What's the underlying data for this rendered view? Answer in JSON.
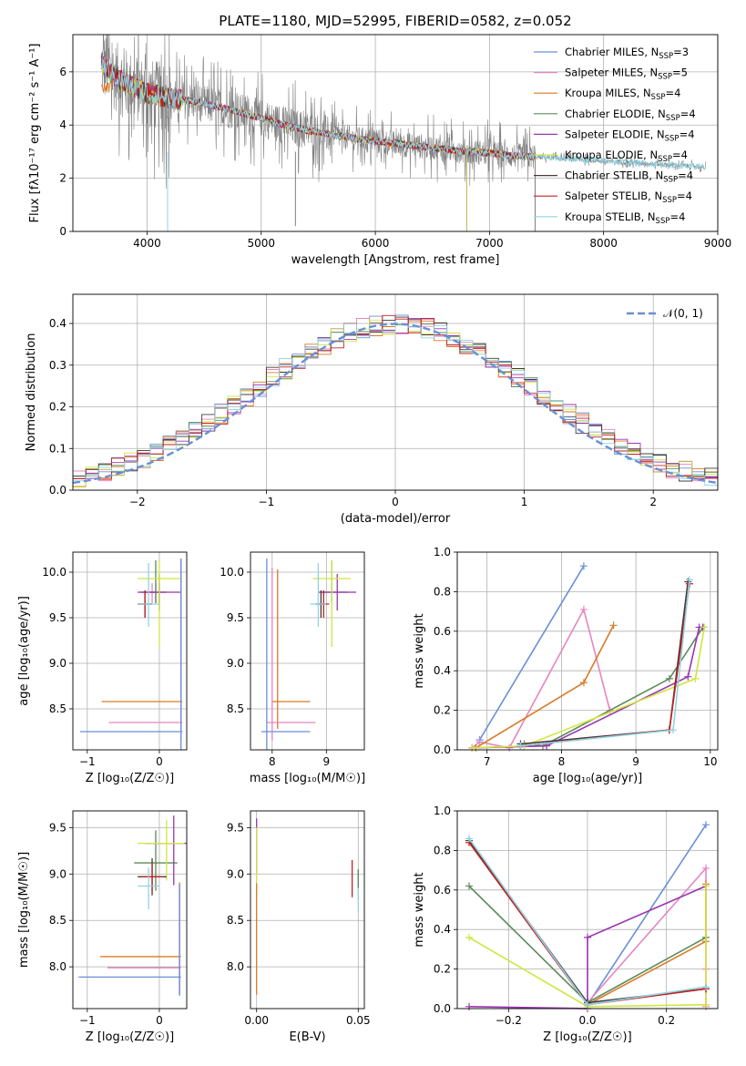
{
  "figure_title": "PLATE=1180, MJD=52995, FIBERID=0582, z=0.052",
  "fits": [
    {
      "name": "Chabrier MILES",
      "nssp": "3",
      "color": "#6a8fd6"
    },
    {
      "name": "Salpeter MILES",
      "nssp": "5",
      "color": "#e586c0"
    },
    {
      "name": "Kroupa MILES",
      "nssp": "4",
      "color": "#d97a25"
    },
    {
      "name": "Chabrier ELODIE",
      "nssp": "4",
      "color": "#5b8a5b"
    },
    {
      "name": "Salpeter ELODIE",
      "nssp": "4",
      "color": "#9a35b0"
    },
    {
      "name": "Kroupa ELODIE",
      "nssp": "4",
      "color": "#cfe63e"
    },
    {
      "name": "Chabrier STELIB",
      "nssp": "4",
      "color": "#4a3838"
    },
    {
      "name": "Salpeter STELIB",
      "nssp": "4",
      "color": "#c62020"
    },
    {
      "name": "Kroupa STELIB",
      "nssp": "4",
      "color": "#8fd3e3"
    }
  ],
  "chart_data": [
    {
      "id": "spectrum",
      "type": "line",
      "xlabel": "wavelength [Angstrom, rest frame]",
      "ylabel": "Flux [fλ10⁻¹⁷ erg cm⁻² s⁻¹ A⁻¹]",
      "xlim": [
        3350,
        9000
      ],
      "ylim": [
        0,
        7.4
      ],
      "xticks": [
        4000,
        5000,
        6000,
        7000,
        8000,
        9000
      ],
      "yticks": [
        0,
        2,
        4,
        6
      ],
      "data_color": "#808080",
      "data_approx": {
        "x": [
          3600,
          3700,
          3800,
          3900,
          4000,
          4200,
          4400,
          4600,
          4800,
          5000,
          5200,
          5400,
          5600,
          5800,
          6000,
          6200,
          6400,
          6600,
          6800,
          7000,
          7200,
          7400,
          7600,
          7800,
          8000,
          8200,
          8400,
          8600,
          8800,
          8900
        ],
        "y": [
          6.3,
          5.9,
          5.6,
          5.4,
          5.2,
          5.0,
          4.9,
          4.7,
          4.5,
          4.25,
          4.0,
          3.8,
          3.65,
          3.5,
          3.4,
          3.3,
          3.2,
          3.1,
          3.0,
          2.95,
          2.85,
          2.8,
          2.75,
          2.7,
          2.65,
          2.6,
          2.55,
          2.5,
          2.45,
          2.4
        ]
      },
      "model_x_range": [
        3600,
        7400
      ],
      "model_orange_x_range": [
        3600,
        7400
      ],
      "model_cyan_x_range": [
        3600,
        9000
      ]
    },
    {
      "id": "residual_hist",
      "type": "line",
      "xlabel": "(data-model)/error",
      "ylabel": "Normed distribution",
      "xlim": [
        -2.5,
        2.5
      ],
      "ylim": [
        0,
        0.47
      ],
      "xticks": [
        -2,
        -1,
        0,
        1,
        2
      ],
      "yticks": [
        0.0,
        0.1,
        0.2,
        0.3,
        0.4
      ],
      "legend_label": "𝒩(0, 1)",
      "curve": "gaussian mean 0 sigma 1",
      "bin_width": 0.1
    },
    {
      "id": "age_vs_Z",
      "type": "scatter",
      "xlabel": "Z [log₁₀(Z/Z☉)]",
      "ylabel": "age  [log₁₀(age/yr)]",
      "xlim": [
        -1.2,
        0.38
      ],
      "ylim": [
        8.05,
        10.22
      ],
      "xticks": [
        -1,
        0
      ],
      "yticks": [
        8.5,
        9.0,
        9.5,
        10.0
      ],
      "points": [
        {
          "fit": 0,
          "x": -0.05,
          "y": 9.78,
          "xerr": [
            0.2,
            0.12
          ],
          "yerr": [
            0.12,
            0.1
          ]
        },
        {
          "fit": 1,
          "x": -0.1,
          "y": 9.78,
          "xerr": [
            0.2,
            0.12
          ],
          "yerr": [
            0.12,
            0.1
          ]
        },
        {
          "fit": 2,
          "x": 0.0,
          "y": 9.78,
          "xerr": [
            0.2,
            0.1
          ],
          "yerr": [
            0.12,
            0.1
          ]
        },
        {
          "fit": 3,
          "x": -0.05,
          "y": 9.78,
          "xerr": [
            0.2,
            0.15
          ],
          "yerr": [
            0.12,
            0.35
          ]
        },
        {
          "fit": 4,
          "x": 0.0,
          "y": 9.78,
          "xerr": [
            0.3,
            0.3
          ],
          "yerr": [
            0.2,
            0.2
          ]
        },
        {
          "fit": 5,
          "x": 0.0,
          "y": 9.93,
          "xerr": [
            0.3,
            0.3
          ],
          "yerr": [
            0.75,
            0.2
          ]
        },
        {
          "fit": 6,
          "x": -0.2,
          "y": 9.65,
          "xerr": [
            0.1,
            0.1
          ],
          "yerr": [
            0.15,
            0.15
          ]
        },
        {
          "fit": 7,
          "x": -0.2,
          "y": 9.65,
          "xerr": [
            0.1,
            0.1
          ],
          "yerr": [
            0.15,
            0.15
          ]
        },
        {
          "fit": 8,
          "x": -0.15,
          "y": 9.65,
          "xerr": [
            0.15,
            0.15
          ],
          "yerr": [
            0.25,
            0.45
          ]
        },
        {
          "fit": 2,
          "x": 0.3,
          "y": 8.58,
          "xerr": [
            1.1,
            0.02
          ],
          "yerr": [
            0.3,
            1.55
          ]
        },
        {
          "fit": 1,
          "x": 0.3,
          "y": 8.35,
          "xerr": [
            1.0,
            0.02
          ],
          "yerr": [
            0.2,
            1.8
          ]
        },
        {
          "fit": 0,
          "x": 0.3,
          "y": 8.25,
          "xerr": [
            1.4,
            0.02
          ],
          "yerr": [
            0.2,
            1.9
          ]
        }
      ]
    },
    {
      "id": "age_vs_mass",
      "type": "scatter",
      "xlabel": "mass [log₁₀(M/M☉)]",
      "ylabel": "",
      "xlim": [
        7.6,
        9.7
      ],
      "ylim": [
        8.05,
        10.22
      ],
      "xticks": [
        8,
        9
      ],
      "yticks": [
        8.5,
        9.0,
        9.5,
        10.0
      ],
      "points": [
        {
          "fit": 0,
          "x": 9.1,
          "y": 9.78,
          "xerr": [
            0.2,
            0.3
          ],
          "yerr": [
            0.12,
            0.1
          ]
        },
        {
          "fit": 3,
          "x": 9.1,
          "y": 9.78,
          "xerr": [
            0.2,
            0.3
          ],
          "yerr": [
            0.12,
            0.35
          ]
        },
        {
          "fit": 4,
          "x": 9.2,
          "y": 9.78,
          "xerr": [
            0.35,
            0.35
          ],
          "yerr": [
            0.2,
            0.2
          ]
        },
        {
          "fit": 5,
          "x": 9.1,
          "y": 9.93,
          "xerr": [
            0.35,
            0.35
          ],
          "yerr": [
            0.75,
            0.2
          ]
        },
        {
          "fit": 6,
          "x": 8.9,
          "y": 9.65,
          "xerr": [
            0.1,
            0.1
          ],
          "yerr": [
            0.15,
            0.15
          ]
        },
        {
          "fit": 7,
          "x": 8.95,
          "y": 9.65,
          "xerr": [
            0.1,
            0.1
          ],
          "yerr": [
            0.15,
            0.15
          ]
        },
        {
          "fit": 8,
          "x": 8.85,
          "y": 9.65,
          "xerr": [
            0.15,
            0.15
          ],
          "yerr": [
            0.25,
            0.45
          ]
        },
        {
          "fit": 2,
          "x": 8.1,
          "y": 8.58,
          "xerr": [
            0.1,
            0.6
          ],
          "yerr": [
            0.3,
            1.45
          ]
        },
        {
          "fit": 1,
          "x": 8.0,
          "y": 8.35,
          "xerr": [
            0.1,
            0.8
          ],
          "yerr": [
            0.2,
            1.7
          ]
        },
        {
          "fit": 0,
          "x": 7.9,
          "y": 8.25,
          "xerr": [
            0.1,
            0.8
          ],
          "yerr": [
            0.2,
            1.9
          ]
        }
      ]
    },
    {
      "id": "mass_weight_vs_age",
      "type": "line",
      "xlabel": "age  [log₁₀(age/yr)]",
      "ylabel": "mass weight",
      "xlim": [
        6.6,
        10.1
      ],
      "ylim": [
        0,
        1.0
      ],
      "xticks": [
        7,
        8,
        9,
        10
      ],
      "yticks": [
        0.0,
        0.2,
        0.4,
        0.6,
        0.8,
        1.0
      ],
      "series": [
        {
          "fit": 0,
          "x": [
            6.9,
            8.3
          ],
          "y": [
            0.05,
            0.93
          ]
        },
        {
          "fit": 1,
          "x": 6.8,
          "x2": [
            6.8,
            6.9,
            7.3,
            8.3,
            8.65
          ],
          "y": [
            0.01,
            0.04,
            0.01,
            0.71,
            0.2
          ]
        },
        {
          "fit": 2,
          "x2": [
            6.85,
            8.3,
            8.7
          ],
          "y": [
            0.01,
            0.34,
            0.63
          ]
        },
        {
          "fit": 3,
          "x2": [
            7.5,
            7.75,
            9.45,
            9.9
          ],
          "y": [
            0.03,
            0.02,
            0.36,
            0.62
          ]
        },
        {
          "fit": 4,
          "x2": [
            6.8,
            7.8,
            9.7,
            9.85,
            9.9
          ],
          "y": [
            0.01,
            0.02,
            0.37,
            0.62,
            0.62
          ]
        },
        {
          "fit": 5,
          "x2": [
            6.8,
            7.5,
            9.8,
            9.92
          ],
          "y": [
            0.01,
            0.02,
            0.36,
            0.62
          ]
        },
        {
          "fit": 6,
          "x2": [
            7.45,
            9.45,
            9.7
          ],
          "y": [
            0.03,
            0.1,
            0.85
          ]
        },
        {
          "fit": 7,
          "x2": [
            7.45,
            9.45,
            9.72
          ],
          "y": [
            0.02,
            0.1,
            0.84
          ]
        },
        {
          "fit": 8,
          "x2": [
            7.45,
            9.5,
            9.72
          ],
          "y": [
            0.02,
            0.1,
            0.86
          ]
        }
      ]
    },
    {
      "id": "mass_vs_Z",
      "type": "scatter",
      "xlabel": "Z [log₁₀(Z/Z☉)]",
      "ylabel": "mass [log₁₀(M/M☉)]",
      "xlim": [
        -1.2,
        0.38
      ],
      "ylim": [
        7.55,
        9.68
      ],
      "xticks": [
        -1,
        0
      ],
      "yticks": [
        8.0,
        8.5,
        9.0,
        9.5
      ],
      "points": [
        {
          "fit": 3,
          "x": -0.05,
          "y": 9.12,
          "xerr": [
            0.3,
            0.3
          ],
          "yerr": [
            0.3,
            0.35
          ]
        },
        {
          "fit": 4,
          "x": 0.2,
          "y": 9.33,
          "xerr": [
            0.4,
            0.2
          ],
          "yerr": [
            0.45,
            0.3
          ]
        },
        {
          "fit": 5,
          "x": 0.1,
          "y": 9.33,
          "xerr": [
            0.4,
            0.25
          ],
          "yerr": [
            0.4,
            0.25
          ]
        },
        {
          "fit": 6,
          "x": -0.1,
          "y": 8.97,
          "xerr": [
            0.2,
            0.2
          ],
          "yerr": [
            0.2,
            0.2
          ]
        },
        {
          "fit": 7,
          "x": -0.1,
          "y": 8.97,
          "xerr": [
            0.15,
            0.15
          ],
          "yerr": [
            0.15,
            0.15
          ]
        },
        {
          "fit": 8,
          "x": -0.15,
          "y": 8.87,
          "xerr": [
            0.15,
            0.15
          ],
          "yerr": [
            0.25,
            0.2
          ]
        },
        {
          "fit": 2,
          "x": 0.28,
          "y": 8.11,
          "xerr": [
            1.1,
            0.02
          ],
          "yerr": [
            0.4,
            0.8
          ]
        },
        {
          "fit": 1,
          "x": 0.28,
          "y": 7.99,
          "xerr": [
            1.0,
            0.02
          ],
          "yerr": [
            0.3,
            0.9
          ]
        },
        {
          "fit": 0,
          "x": 0.28,
          "y": 7.89,
          "xerr": [
            1.4,
            0.02
          ],
          "yerr": [
            0.2,
            1.0
          ]
        }
      ]
    },
    {
      "id": "mass_vs_EBV",
      "type": "scatter",
      "xlabel": "E(B-V)",
      "ylabel": "",
      "xlim": [
        -0.003,
        0.053
      ],
      "ylim": [
        7.55,
        9.68
      ],
      "xticks": [
        0.0,
        0.05
      ],
      "xtick_labels": [
        "0.00",
        "0.05"
      ],
      "yticks": [
        8.0,
        8.5,
        9.0,
        9.5
      ],
      "points": [
        {
          "fit": 4,
          "x": 0.0,
          "y": 9.3,
          "yerr": [
            0.3,
            0.3
          ]
        },
        {
          "fit": 5,
          "x": 0.0,
          "y": 9.2,
          "yerr": [
            0.4,
            0.3
          ]
        },
        {
          "fit": 2,
          "x": 0.0,
          "y": 8.3,
          "yerr": [
            0.6,
            0.6
          ]
        },
        {
          "fit": 7,
          "x": 0.047,
          "y": 8.95,
          "yerr": [
            0.2,
            0.2
          ]
        },
        {
          "fit": 8,
          "x": 0.05,
          "y": 8.85,
          "yerr": [
            0.25,
            0.2
          ]
        },
        {
          "fit": 3,
          "x": 0.05,
          "y": 8.95,
          "yerr": [
            0.1,
            0.1
          ]
        }
      ]
    },
    {
      "id": "mass_weight_vs_Z",
      "type": "line",
      "xlabel": "Z [log₁₀(Z/Z☉)]",
      "ylabel": "mass weight",
      "xlim": [
        -0.33,
        0.33
      ],
      "ylim": [
        0,
        1.0
      ],
      "xticks": [
        -0.2,
        0.0,
        0.2
      ],
      "xtick_labels": [
        "−0.2",
        "0.0",
        "0.2"
      ],
      "yticks": [
        0.0,
        0.2,
        0.4,
        0.6,
        0.8,
        1.0
      ],
      "series": [
        {
          "fit": 0,
          "x2": [
            0.0,
            0.0,
            0.3
          ],
          "y": [
            0.04,
            0.02,
            0.93
          ]
        },
        {
          "fit": 1,
          "x2": [
            0.0,
            0.3,
            0.3,
            0.3
          ],
          "y": [
            0.03,
            0.71,
            0.2,
            0.01
          ]
        },
        {
          "fit": 2,
          "x2": [
            0.0,
            0.3,
            0.3
          ],
          "y": [
            0.02,
            0.34,
            0.63
          ]
        },
        {
          "fit": 3,
          "x2": [
            -0.3,
            0.0,
            0.3
          ],
          "y": [
            0.62,
            0.03,
            0.36
          ]
        },
        {
          "fit": 4,
          "x2": [
            -0.3,
            0.0,
            0.0,
            0.3
          ],
          "y": [
            0.01,
            0.0,
            0.36,
            0.62
          ]
        },
        {
          "fit": 5,
          "x2": [
            -0.3,
            0.0,
            0.3,
            0.3
          ],
          "y": [
            0.36,
            0.01,
            0.02,
            0.62
          ]
        },
        {
          "fit": 6,
          "x2": [
            -0.3,
            0.0,
            0.3
          ],
          "y": [
            0.85,
            0.03,
            0.1
          ]
        },
        {
          "fit": 7,
          "x2": [
            -0.3,
            0.0,
            0.3
          ],
          "y": [
            0.84,
            0.02,
            0.1
          ]
        },
        {
          "fit": 8,
          "x2": [
            -0.3,
            0.0,
            0.3
          ],
          "y": [
            0.86,
            0.02,
            0.11
          ]
        }
      ]
    }
  ]
}
